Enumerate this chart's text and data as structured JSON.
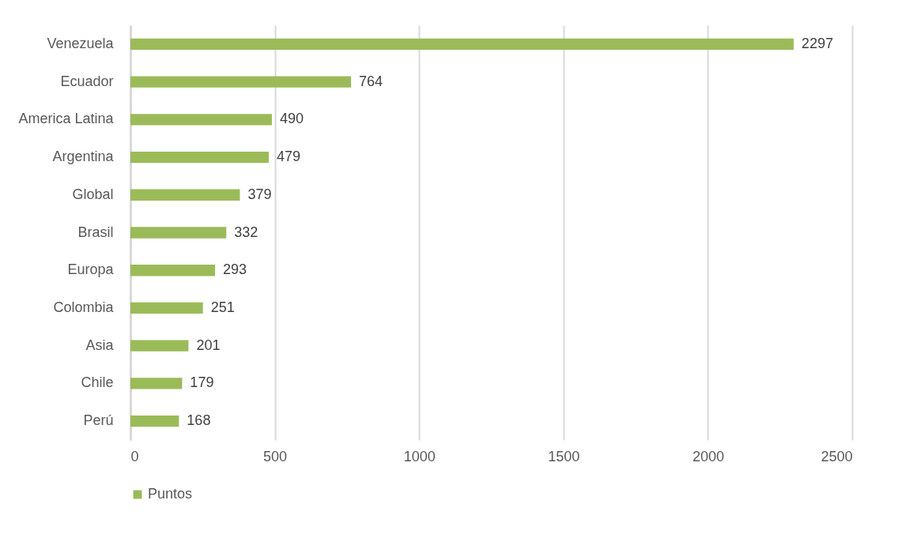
{
  "chart_data": {
    "type": "bar",
    "orientation": "horizontal",
    "categories": [
      "Venezuela",
      "Ecuador",
      "America Latina",
      "Argentina",
      "Global",
      "Brasil",
      "Europa",
      "Colombia",
      "Asia",
      "Chile",
      "Perú"
    ],
    "series": [
      {
        "name": "Puntos",
        "color": "#9bbb59",
        "values": [
          2297,
          764,
          490,
          479,
          379,
          332,
          293,
          251,
          201,
          179,
          168
        ]
      }
    ],
    "xlim": [
      0,
      2500
    ],
    "xticks": [
      0,
      500,
      1000,
      1500,
      2000,
      2500
    ],
    "grid": "x",
    "legend": "bottom",
    "data_labels": true
  }
}
